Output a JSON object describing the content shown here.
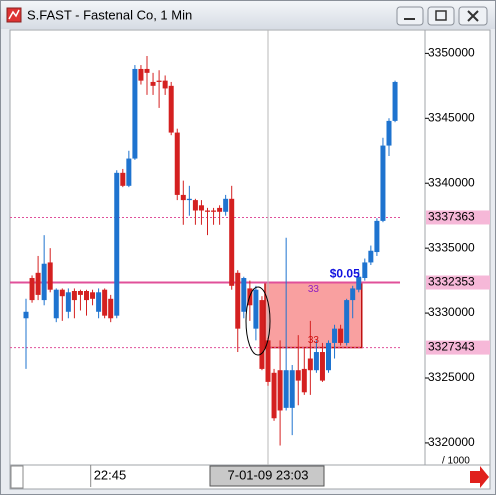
{
  "window_title": "S.FAST - Fastenal Co, 1 Min",
  "chart_data": {
    "type": "candlestick",
    "categories": [
      null,
      null,
      null,
      null,
      null,
      null,
      null,
      null,
      null,
      null,
      null,
      null,
      null,
      null,
      "22:45",
      null,
      null,
      null,
      null,
      null,
      null,
      null,
      null,
      null,
      null,
      null,
      null,
      null,
      null,
      null,
      null,
      null,
      null,
      null,
      null,
      null,
      null,
      null,
      null,
      null,
      "7-01-09 23:03",
      null,
      null,
      null,
      null,
      null,
      null,
      null,
      null,
      null,
      null,
      null,
      null,
      null,
      null,
      null,
      null,
      null,
      null,
      null,
      null,
      null
    ],
    "open": [
      3329600,
      3332700,
      3333100,
      3331000,
      3333900,
      3329600,
      3331800,
      3330100,
      3331700,
      3331700,
      3331700,
      3331600,
      3330100,
      3331800,
      3331100,
      3329800,
      3340800,
      3339800,
      3341900,
      3348800,
      3348800,
      3347800,
      3347900,
      3347900,
      3347500,
      3343900,
      3339100,
      3338700,
      3338700,
      3338300,
      3337900,
      3337900,
      3338100,
      3337800,
      3338800,
      3333100,
      3330100,
      3331900,
      3328800,
      3331000,
      3327900,
      3325400,
      3325600,
      3322700,
      3322700,
      3325600,
      3325700,
      3326500,
      3325600,
      3327000,
      3325600,
      3327700,
      3328800,
      3327700,
      3331000,
      3331800,
      3332700,
      3333900,
      3334700,
      3337100,
      3342900,
      3344800
    ],
    "high": [
      3331100,
      3332900,
      3334400,
      3336000,
      3335000,
      3331900,
      3331900,
      3331900,
      3331900,
      3331800,
      3331800,
      3331800,
      3331900,
      3331900,
      3331400,
      3341000,
      3341100,
      3342500,
      3349100,
      3349100,
      3349800,
      3348500,
      3348700,
      3348300,
      3347800,
      3344200,
      3340200,
      3339800,
      3338800,
      3338700,
      3338100,
      3338100,
      3338300,
      3339100,
      3339800,
      3333300,
      3332800,
      3332500,
      3332100,
      3331300,
      3328100,
      3325700,
      3327900,
      3335800,
      3326000,
      3328300,
      3327300,
      3329400,
      3327900,
      3327700,
      3327900,
      3329100,
      3329100,
      3331100,
      3332100,
      3333300,
      3334200,
      3335200,
      3337300,
      3343500,
      3345000,
      3347900
    ],
    "low": [
      3325700,
      3330800,
      3331000,
      3330600,
      3331600,
      3329300,
      3329400,
      3329600,
      3329600,
      3330200,
      3329800,
      3330600,
      3329600,
      3329600,
      3329300,
      3329600,
      3339700,
      3339700,
      3341800,
      3347600,
      3346800,
      3346800,
      3345800,
      3346800,
      3343700,
      3338700,
      3336800,
      3337500,
      3336800,
      3336800,
      3336000,
      3336800,
      3336800,
      3337500,
      3331800,
      3327000,
      3329600,
      3329400,
      3327900,
      3325600,
      3324400,
      3321700,
      3319800,
      3322500,
      3320600,
      3322900,
      3323700,
      3323700,
      3325400,
      3324700,
      3325400,
      3326500,
      3327500,
      3327500,
      3329600,
      3331600,
      3332500,
      3333700,
      3334400,
      3337000,
      3342100,
      3344700
    ],
    "close": [
      3330100,
      3331000,
      3331400,
      3333800,
      3331800,
      3331800,
      3331300,
      3331600,
      3331000,
      3331400,
      3331000,
      3331100,
      3331600,
      3329800,
      3329600,
      3340800,
      3339800,
      3341900,
      3348800,
      3347900,
      3348500,
      3347500,
      3347800,
      3347300,
      3343900,
      3339100,
      3338700,
      3338800,
      3337900,
      3337900,
      3337800,
      3337800,
      3337800,
      3338800,
      3332100,
      3328800,
      3332700,
      3330600,
      3331800,
      3325700,
      3324700,
      3321900,
      3322500,
      3325600,
      3325600,
      3324800,
      3323900,
      3325600,
      3327000,
      3324800,
      3327700,
      3328800,
      3327700,
      3331000,
      3331900,
      3332800,
      3333900,
      3334800,
      3337100,
      3342900,
      3344800,
      3347800
    ],
    "up_color": "#1e73cf",
    "down_color": "#d42020",
    "ylim": [
      3318300,
      3351800
    ],
    "yticks": [
      3320000,
      3325000,
      3330000,
      3335000,
      3340000,
      3345000,
      3350000
    ],
    "y_unit": "/ 1000",
    "crosshair_index": 40,
    "levels": [
      {
        "value": 3337363,
        "style": "dashed"
      },
      {
        "value": 3332353,
        "style": "solid"
      },
      {
        "value": 3327343,
        "style": "dashed"
      }
    ],
    "box": {
      "start": 40,
      "end": 55,
      "top": 3332353,
      "bottom": 3327343,
      "label": "$0.05",
      "top_label": "33",
      "bottom_label": "33"
    }
  }
}
